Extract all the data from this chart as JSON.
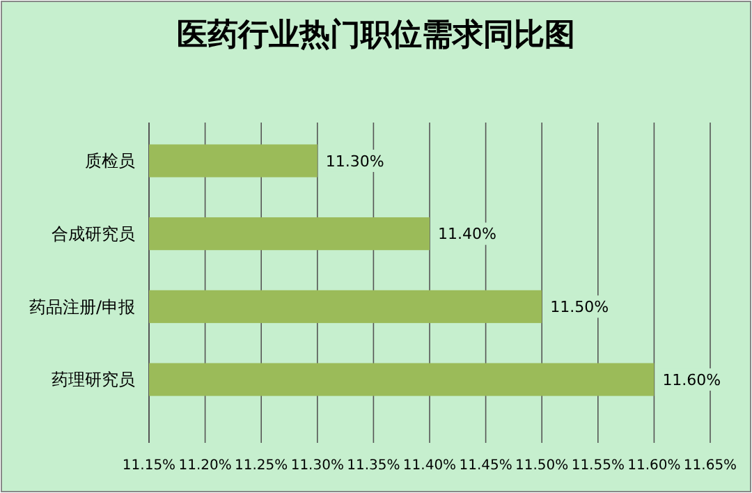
{
  "chart_data": {
    "type": "bar",
    "orientation": "horizontal",
    "title": "医药行业热门职位需求同比图",
    "categories": [
      "质检员",
      "合成研究员",
      "药品注册/申报",
      "药理研究员"
    ],
    "values": [
      11.3,
      11.4,
      11.5,
      11.6
    ],
    "value_labels": [
      "11.30%",
      "11.40%",
      "11.50%",
      "11.60%"
    ],
    "color": "#9bbb59",
    "xlim": [
      11.15,
      11.65
    ],
    "xticks": [
      {
        "value": 11.15,
        "label": "11.15%"
      },
      {
        "value": 11.2,
        "label": "11.20%"
      },
      {
        "value": 11.25,
        "label": "11.25%"
      },
      {
        "value": 11.3,
        "label": "11.30%"
      },
      {
        "value": 11.35,
        "label": "11.35%"
      },
      {
        "value": 11.4,
        "label": "11.40%"
      },
      {
        "value": 11.45,
        "label": "11.45%"
      },
      {
        "value": 11.5,
        "label": "11.50%"
      },
      {
        "value": 11.55,
        "label": "11.55%"
      },
      {
        "value": 11.6,
        "label": "11.60%"
      },
      {
        "value": 11.65,
        "label": "11.65%"
      }
    ],
    "grid": "x"
  }
}
